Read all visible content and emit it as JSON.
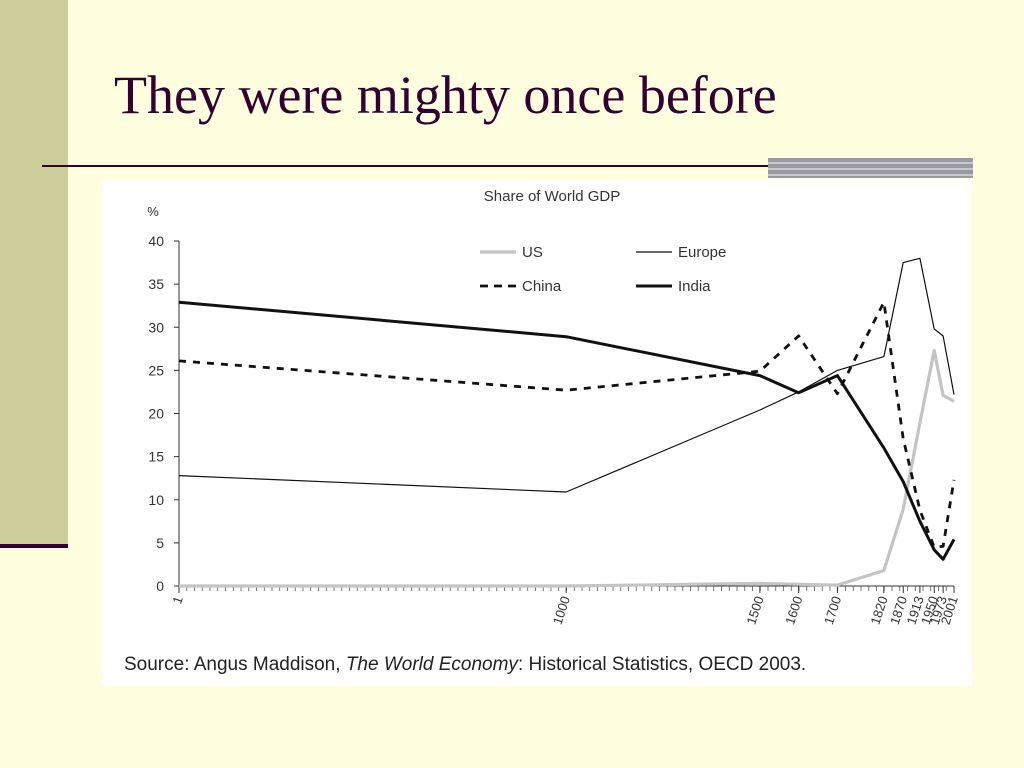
{
  "slide": {
    "title": "They were mighty once before"
  },
  "chart_data": {
    "type": "line",
    "title": "Share of World GDP",
    "ylabel": "%",
    "xlabel": "",
    "ylim": [
      0,
      40
    ],
    "yticks": [
      0,
      5,
      10,
      15,
      20,
      25,
      30,
      35,
      40
    ],
    "categories": [
      "1",
      "1000",
      "1500",
      "1600",
      "1700",
      "1820",
      "1870",
      "1913",
      "1950",
      "1973",
      "2001"
    ],
    "legend_position": "top-right",
    "series": [
      {
        "name": "US",
        "style": "light-gray",
        "values": [
          0,
          0,
          0.3,
          0.2,
          0.1,
          1.8,
          8.9,
          18.9,
          27.3,
          22.1,
          21.4
        ]
      },
      {
        "name": "Europe",
        "style": "thin-black",
        "values": [
          12.8,
          10.9,
          20.4,
          22.5,
          25,
          26.6,
          37.5,
          38,
          29.8,
          29,
          22.2
        ]
      },
      {
        "name": "China",
        "style": "dashed-black",
        "values": [
          26.1,
          22.7,
          24.9,
          29,
          22.3,
          32.9,
          17.1,
          8.8,
          4.5,
          4.6,
          12.3
        ]
      },
      {
        "name": "India",
        "style": "thick-black",
        "values": [
          32.9,
          28.9,
          24.4,
          22.4,
          24.4,
          16,
          12.1,
          7.5,
          4.2,
          3.1,
          5.4
        ]
      }
    ],
    "source": {
      "prefix": "Source: Angus Maddison, ",
      "italic": "The World Economy",
      "suffix": ": Historical Statistics, OECD 2003."
    }
  }
}
